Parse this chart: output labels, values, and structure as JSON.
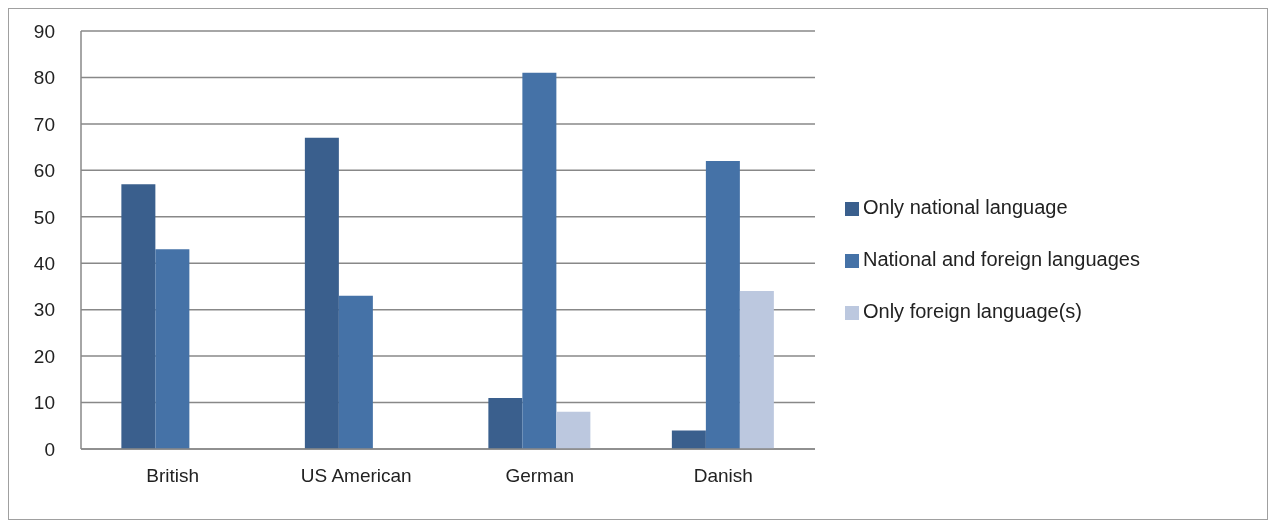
{
  "chart_data": {
    "type": "bar",
    "categories": [
      "British",
      "US American",
      "German",
      "Danish"
    ],
    "series": [
      {
        "name": "Only national language",
        "color": "#3a5f8d",
        "values": [
          57,
          67,
          11,
          4
        ]
      },
      {
        "name": "National and foreign languages",
        "color": "#4572a7",
        "values": [
          43,
          33,
          81,
          62
        ]
      },
      {
        "name": "Only foreign language(s)",
        "color": "#bcc8df",
        "values": [
          null,
          null,
          8,
          34
        ]
      }
    ],
    "ylim": [
      0,
      90
    ],
    "yticks": [
      0,
      10,
      20,
      30,
      40,
      50,
      60,
      70,
      80,
      90
    ],
    "grid": "y",
    "legend": "right"
  }
}
